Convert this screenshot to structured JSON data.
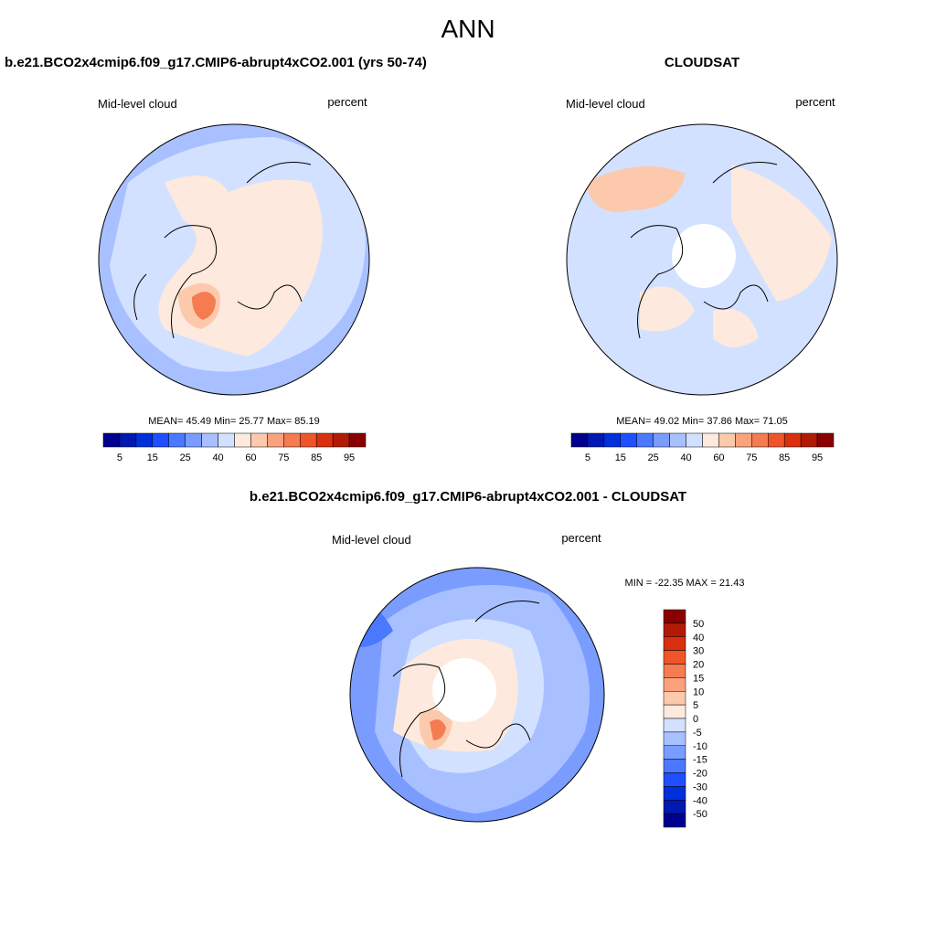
{
  "title": "ANN",
  "panels": [
    {
      "title": "b.e21.BCO2x4cmip6.f09_g17.CMIP6-abrupt4xCO2.001 (yrs 50-74)",
      "left_label": "Mid-level cloud",
      "right_label": "percent",
      "stats": {
        "mean_label": "MEAN=",
        "mean": 45.49,
        "min_label": "Min=",
        "min": 25.77,
        "max_label": "Max=",
        "max": 85.19
      },
      "colorbar": {
        "labels": [
          5,
          15,
          25,
          40,
          60,
          75,
          85,
          95
        ]
      }
    },
    {
      "title": "CLOUDSAT",
      "left_label": "Mid-level cloud",
      "right_label": "percent",
      "stats": {
        "mean_label": "MEAN=",
        "mean": 49.02,
        "min_label": "Min=",
        "min": 37.86,
        "max_label": "Max=",
        "max": 71.05
      },
      "colorbar": {
        "labels": [
          5,
          15,
          25,
          40,
          60,
          75,
          85,
          95
        ]
      }
    }
  ],
  "difference": {
    "title": "b.e21.BCO2x4cmip6.f09_g17.CMIP6-abrupt4xCO2.001 - CLOUDSAT",
    "left_label": "Mid-level cloud",
    "right_label": "percent",
    "stats": {
      "min_label": "MIN =",
      "min": -22.35,
      "max_label": "MAX =",
      "max": 21.43
    },
    "colorbar": {
      "labels": [
        50,
        40,
        30,
        20,
        15,
        10,
        5,
        0,
        -5,
        -10,
        -15,
        -20,
        -30,
        -40,
        -50
      ]
    }
  },
  "colors": [
    "#00008f",
    "#0019b3",
    "#0030d9",
    "#1f4fff",
    "#4a78ff",
    "#7a9cff",
    "#a8c0ff",
    "#d2e1ff",
    "#fde9dd",
    "#fcc9ad",
    "#f9a27d",
    "#f57b50",
    "#f0552a",
    "#d9300f",
    "#b31a05",
    "#8a0000"
  ]
}
